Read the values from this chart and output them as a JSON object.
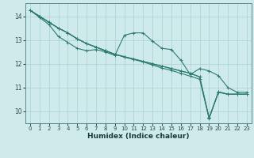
{
  "xlabel": "Humidex (Indice chaleur)",
  "ylabel": "",
  "background_color": "#ceeaea",
  "grid_color": "#aacfcf",
  "line_color": "#2d7a6e",
  "xlim": [
    -0.5,
    23.5
  ],
  "ylim": [
    9.5,
    14.55
  ],
  "yticks": [
    10,
    11,
    12,
    13,
    14
  ],
  "xticks": [
    0,
    1,
    2,
    3,
    4,
    5,
    6,
    7,
    8,
    9,
    10,
    11,
    12,
    13,
    14,
    15,
    16,
    17,
    18,
    19,
    20,
    21,
    22,
    23
  ],
  "lines": [
    {
      "x": [
        0,
        1,
        2,
        3,
        4,
        5,
        6,
        7,
        8,
        9,
        10,
        11,
        12,
        13,
        14,
        15,
        16,
        17,
        18,
        19,
        20,
        21,
        22,
        23
      ],
      "y": [
        14.25,
        14.0,
        13.75,
        13.5,
        13.3,
        13.05,
        12.85,
        12.7,
        12.55,
        12.4,
        12.3,
        12.2,
        12.1,
        12.0,
        11.9,
        11.8,
        11.7,
        11.6,
        11.45,
        9.72,
        10.82,
        10.72,
        10.72,
        10.72
      ]
    },
    {
      "x": [
        0,
        1,
        2,
        3,
        4,
        5,
        6,
        7,
        8,
        9,
        10,
        11,
        12,
        13,
        14,
        15,
        16,
        17,
        18,
        19,
        20,
        21,
        22,
        23
      ],
      "y": [
        14.25,
        14.0,
        13.75,
        13.5,
        13.3,
        13.05,
        12.85,
        12.7,
        12.55,
        12.4,
        12.28,
        12.18,
        12.08,
        11.95,
        11.82,
        11.72,
        11.6,
        11.48,
        11.35,
        9.7,
        10.8,
        10.72,
        10.72,
        10.72
      ]
    },
    {
      "x": [
        0,
        1,
        2,
        3,
        4,
        5,
        6,
        7,
        8,
        9,
        10,
        11,
        12,
        13,
        14,
        15,
        16,
        17,
        18,
        19,
        20,
        21,
        22,
        23
      ],
      "y": [
        14.25,
        13.95,
        13.65,
        13.15,
        12.9,
        12.65,
        12.55,
        12.6,
        12.5,
        12.35,
        13.2,
        13.3,
        13.3,
        12.95,
        12.65,
        12.6,
        12.15,
        11.55,
        11.8,
        11.7,
        11.5,
        11.0,
        10.8,
        10.8
      ]
    },
    {
      "x": [
        0,
        1,
        2,
        3,
        4,
        5,
        6,
        7,
        8,
        9,
        10,
        11,
        12,
        13,
        14,
        15,
        16,
        17,
        18,
        19,
        20,
        21,
        22,
        23
      ],
      "y": [
        14.25,
        14.0,
        13.75,
        13.5,
        13.3,
        13.05,
        12.85,
        12.7,
        12.55,
        12.4,
        12.3,
        12.2,
        12.1,
        12.0,
        11.9,
        11.8,
        11.7,
        11.6,
        11.45,
        9.72,
        10.82,
        10.72,
        10.72,
        10.72
      ]
    }
  ],
  "marker": "+",
  "markersize": 3,
  "linewidth": 0.8
}
